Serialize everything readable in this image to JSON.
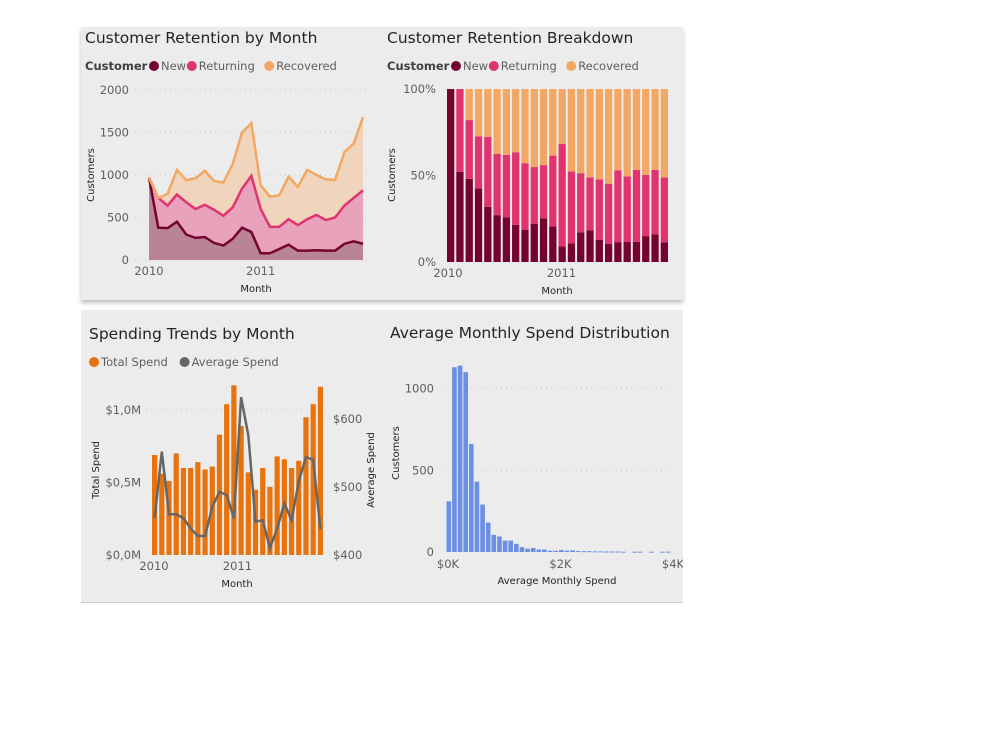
{
  "chart_data": [
    {
      "type": "area",
      "stacked": true,
      "title": "Customer Retention by Month",
      "legend_title": "Customer",
      "legend_position": "top-left",
      "xlabel": "Month",
      "ylabel": "Customers",
      "ylim": [
        0,
        2000
      ],
      "yticks": [
        "0",
        "500",
        "1000",
        "1500",
        "2000"
      ],
      "xticks": [
        "2010",
        "2011"
      ],
      "x": [
        "2010-01",
        "2010-02",
        "2010-03",
        "2010-04",
        "2010-05",
        "2010-06",
        "2010-07",
        "2010-08",
        "2010-09",
        "2010-10",
        "2010-11",
        "2010-12",
        "2011-01",
        "2011-02",
        "2011-03",
        "2011-04",
        "2011-05",
        "2011-06",
        "2011-07",
        "2011-08",
        "2011-09",
        "2011-10",
        "2011-11",
        "2011-12"
      ],
      "series": [
        {
          "name": "New",
          "color": "#75032f",
          "values": [
            970,
            380,
            375,
            450,
            300,
            260,
            270,
            200,
            170,
            250,
            380,
            330,
            80,
            80,
            130,
            180,
            110,
            110,
            115,
            110,
            110,
            190,
            220,
            190
          ]
        },
        {
          "name": "Returning",
          "color": "#e0346f",
          "values": [
            0,
            350,
            265,
            320,
            380,
            340,
            380,
            390,
            350,
            370,
            460,
            660,
            520,
            310,
            260,
            300,
            300,
            370,
            415,
            360,
            390,
            450,
            510,
            630
          ]
        },
        {
          "name": "Recovered",
          "color": "#f2a864",
          "values": [
            0,
            0,
            140,
            290,
            260,
            360,
            400,
            340,
            390,
            510,
            660,
            620,
            280,
            355,
            370,
            500,
            450,
            580,
            470,
            480,
            440,
            630,
            640,
            860
          ]
        }
      ],
      "grid": true
    },
    {
      "type": "bar",
      "stacked_percent": true,
      "title": "Customer Retention Breakdown",
      "legend_title": "Customer",
      "legend_position": "top-left",
      "xlabel": "Month",
      "ylabel": "Customers",
      "ylim": [
        0,
        100
      ],
      "yticks": [
        "0%",
        "50%",
        "100%"
      ],
      "xticks": [
        "2010",
        "2011"
      ],
      "uses_series_of": "Customer Retention by Month"
    },
    {
      "type": "bar+line",
      "title": "Spending Trends by Month",
      "legend_position": "top-left",
      "xlabel": "Month",
      "ylabel": "Total Spend",
      "y2label": "Average Spend",
      "xticks": [
        "2010",
        "2011"
      ],
      "ylim": [
        0,
        1.25
      ],
      "yticks": [
        "$0,0M",
        "$0,5M",
        "$1,0M"
      ],
      "y2lim": [
        400,
        650
      ],
      "y2ticks": [
        "$400",
        "$500",
        "$600"
      ],
      "series": [
        {
          "name": "Total Spend",
          "color": "#e8720c",
          "unit": "$M",
          "values": [
            0.69,
            0.56,
            0.51,
            0.7,
            0.6,
            0.6,
            0.64,
            0.59,
            0.61,
            0.83,
            1.04,
            1.17,
            0.89,
            0.57,
            0.45,
            0.6,
            0.47,
            0.68,
            0.66,
            0.6,
            0.65,
            0.95,
            1.04,
            1.16
          ]
        },
        {
          "name": "Average Spend",
          "color": "#666666",
          "unit": "$",
          "values": [
            454,
            552,
            460,
            460,
            454,
            439,
            428,
            428,
            471,
            493,
            488,
            454,
            632,
            576,
            449,
            451,
            410,
            439,
            476,
            451,
            508,
            544,
            540,
            438
          ]
        }
      ],
      "grid": true
    },
    {
      "type": "histogram",
      "title": "Average Monthly Spend Distribution",
      "xlabel": "Average Monthly Spend",
      "ylabel": "Customers",
      "xlim": [
        0,
        4000
      ],
      "xticks": [
        "$0K",
        "$2K",
        "$4K"
      ],
      "ylim": [
        0,
        1200
      ],
      "yticks": [
        "0",
        "500",
        "1000"
      ],
      "bin_width": 100,
      "color": "#6b8fe3",
      "values": [
        310,
        1130,
        1140,
        1100,
        660,
        430,
        290,
        180,
        105,
        95,
        70,
        70,
        50,
        30,
        20,
        25,
        15,
        15,
        8,
        8,
        12,
        8,
        10,
        6,
        5,
        5,
        4,
        4,
        3,
        3,
        3,
        2,
        0,
        2,
        2,
        0,
        2,
        0,
        2,
        2
      ],
      "grid": true
    }
  ]
}
